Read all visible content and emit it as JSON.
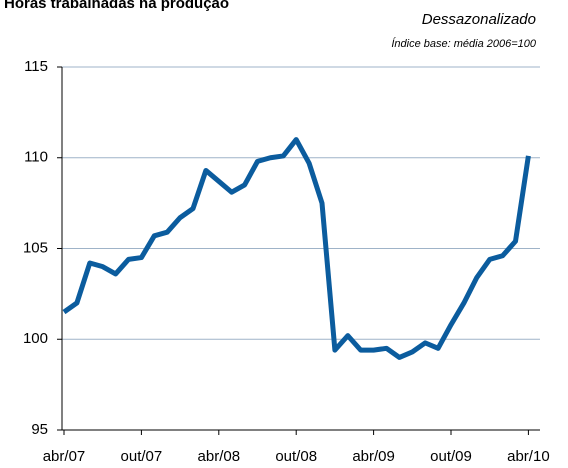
{
  "chart_data": {
    "type": "line",
    "title": "Horas trabalhadas na produção",
    "subtitle": "Dessazonalizado",
    "note": "Índice base: média 2006=100",
    "categories": [
      "abr/07",
      null,
      null,
      null,
      null,
      null,
      "out/07",
      null,
      null,
      null,
      null,
      null,
      "abr/08",
      null,
      null,
      null,
      null,
      null,
      "out/08",
      null,
      null,
      null,
      null,
      null,
      "abr/09",
      null,
      null,
      null,
      null,
      null,
      "out/09",
      null,
      null,
      null,
      null,
      null,
      "abr/10"
    ],
    "series": [
      {
        "name": "Horas trabalhadas",
        "color": "#0b5c9e",
        "values": [
          101.5,
          102.0,
          104.2,
          104.0,
          103.6,
          104.4,
          104.5,
          105.7,
          105.9,
          106.7,
          107.2,
          109.3,
          108.7,
          108.1,
          108.5,
          109.8,
          110.0,
          110.1,
          111.0,
          109.7,
          107.5,
          99.4,
          100.2,
          99.4,
          99.4,
          99.5,
          99.0,
          99.3,
          99.8,
          99.5,
          100.8,
          102.0,
          103.4,
          104.4,
          104.6,
          105.4,
          110.1
        ]
      }
    ],
    "ylim": [
      95,
      115
    ],
    "yticks": [
      95,
      100,
      105,
      110,
      115
    ],
    "grid": true
  }
}
